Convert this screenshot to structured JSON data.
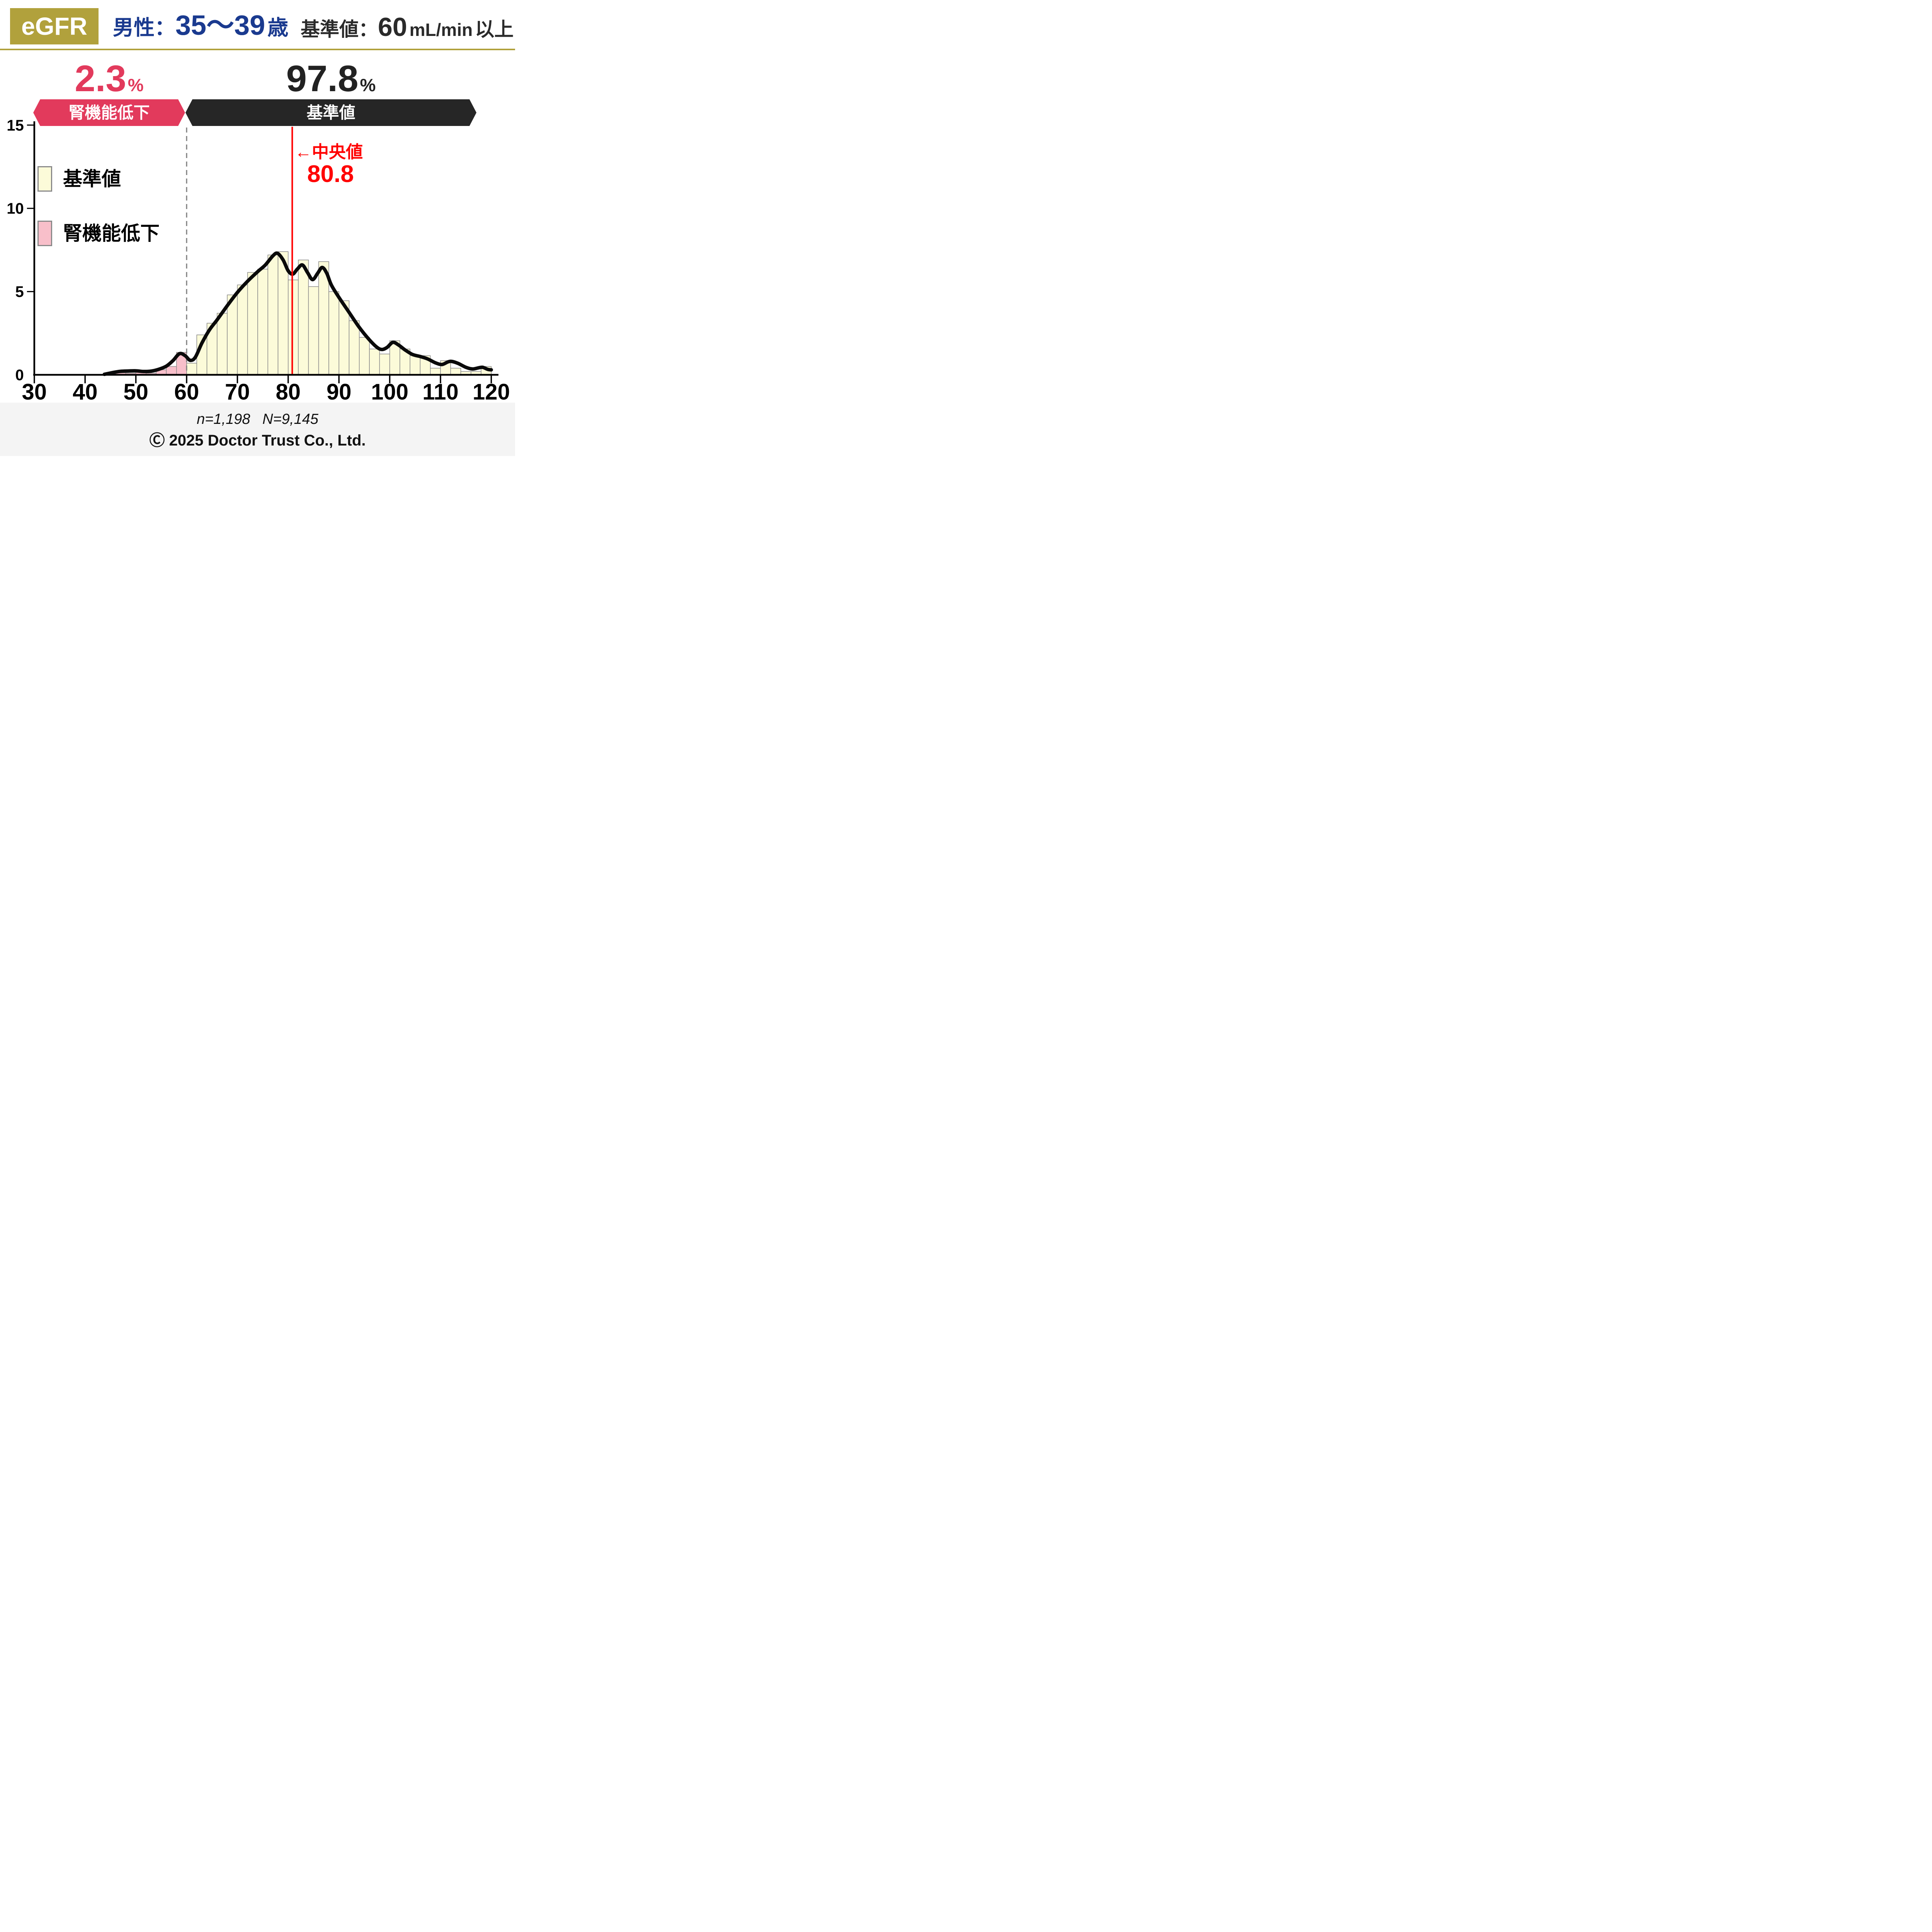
{
  "header": {
    "badge": "eGFR",
    "group_label": "男性：",
    "group_value": "35～39",
    "group_suffix": "歳",
    "ref_label": "基準値：",
    "ref_value": "60",
    "ref_unit": "mL/min",
    "ref_suffix": "以上",
    "accent_color": "#B1A13C",
    "group_color": "#1A3A8F"
  },
  "banners": {
    "low": {
      "pct": "2.3",
      "pct_unit": "%",
      "label": "腎機能低下",
      "color": "#E23A5C"
    },
    "normal": {
      "pct": "97.8",
      "pct_unit": "%",
      "label": "基準値",
      "color": "#262626"
    }
  },
  "legend": [
    {
      "label": "基準値",
      "color": "#FCFBD9"
    },
    {
      "label": "腎機能低下",
      "color": "#F8BFCA"
    }
  ],
  "median": {
    "arrow_label": "←中央値",
    "value": "80.8",
    "color": "#FF0000"
  },
  "footer": {
    "stats": "n=1,198   N=9,145",
    "copyright": "Ⓒ 2025 Doctor Trust Co., Ltd."
  },
  "chart_data": {
    "type": "bar",
    "subtype": "histogram_with_density_curve",
    "xlim": [
      30,
      120
    ],
    "ylim": [
      0,
      15
    ],
    "x_ticks": [
      30,
      40,
      50,
      60,
      70,
      80,
      90,
      100,
      110,
      120
    ],
    "y_ticks": [
      0,
      5,
      10,
      15
    ],
    "bin_width": 2,
    "threshold_x": 60,
    "median_x": 80.8,
    "grid": false,
    "legend_position": "upper-left-inside",
    "series": [
      {
        "name": "腎機能低下",
        "color": "#F8BFCA",
        "bins": [
          [
            44,
            0.07
          ],
          [
            46,
            0.12
          ],
          [
            48,
            0.1
          ],
          [
            50,
            0.2
          ],
          [
            52,
            0.1
          ],
          [
            54,
            0.3
          ],
          [
            56,
            0.5
          ],
          [
            58,
            1.35
          ]
        ]
      },
      {
        "name": "基準値",
        "color": "#FCFBD9",
        "bins": [
          [
            60,
            0.7
          ],
          [
            62,
            2.4
          ],
          [
            64,
            3.1
          ],
          [
            66,
            3.7
          ],
          [
            68,
            4.8
          ],
          [
            70,
            5.4
          ],
          [
            72,
            6.15
          ],
          [
            74,
            6.35
          ],
          [
            76,
            7.2
          ],
          [
            78,
            7.4
          ],
          [
            80,
            5.7
          ],
          [
            82,
            6.9
          ],
          [
            84,
            5.3
          ],
          [
            86,
            6.8
          ],
          [
            88,
            5.0
          ],
          [
            90,
            4.45
          ],
          [
            92,
            3.25
          ],
          [
            94,
            2.25
          ],
          [
            96,
            1.55
          ],
          [
            98,
            1.25
          ],
          [
            100,
            2.05
          ],
          [
            102,
            1.55
          ],
          [
            104,
            1.15
          ],
          [
            106,
            1.15
          ],
          [
            108,
            0.4
          ],
          [
            110,
            0.85
          ],
          [
            112,
            0.4
          ],
          [
            114,
            0.2
          ],
          [
            116,
            0.2
          ],
          [
            118,
            0.5
          ]
        ]
      }
    ],
    "density_curve": [
      [
        43.8,
        0.03
      ],
      [
        45.5,
        0.14
      ],
      [
        47,
        0.21
      ],
      [
        48.5,
        0.23
      ],
      [
        50,
        0.24
      ],
      [
        51.5,
        0.2
      ],
      [
        53,
        0.22
      ],
      [
        54.5,
        0.33
      ],
      [
        56,
        0.52
      ],
      [
        57.3,
        0.85
      ],
      [
        58.6,
        1.27
      ],
      [
        59.7,
        1.15
      ],
      [
        60.7,
        0.87
      ],
      [
        61.7,
        1.05
      ],
      [
        63,
        1.9
      ],
      [
        64.5,
        2.7
      ],
      [
        66,
        3.3
      ],
      [
        68,
        4.15
      ],
      [
        70,
        4.95
      ],
      [
        72,
        5.62
      ],
      [
        74,
        6.2
      ],
      [
        75.5,
        6.6
      ],
      [
        77,
        7.15
      ],
      [
        77.9,
        7.3
      ],
      [
        79,
        6.9
      ],
      [
        80,
        6.25
      ],
      [
        80.9,
        6.05
      ],
      [
        81.8,
        6.35
      ],
      [
        82.8,
        6.6
      ],
      [
        83.8,
        6.15
      ],
      [
        84.8,
        5.72
      ],
      [
        85.8,
        6.1
      ],
      [
        86.7,
        6.45
      ],
      [
        87.6,
        6.1
      ],
      [
        88.5,
        5.4
      ],
      [
        90,
        4.65
      ],
      [
        92,
        3.75
      ],
      [
        94,
        2.85
      ],
      [
        96,
        2.1
      ],
      [
        97.5,
        1.65
      ],
      [
        98.5,
        1.52
      ],
      [
        99.5,
        1.65
      ],
      [
        100.6,
        1.95
      ],
      [
        101.7,
        1.8
      ],
      [
        103,
        1.5
      ],
      [
        104.5,
        1.22
      ],
      [
        106,
        1.1
      ],
      [
        107.5,
        0.95
      ],
      [
        109,
        0.72
      ],
      [
        110.3,
        0.62
      ],
      [
        111.5,
        0.78
      ],
      [
        112.3,
        0.8
      ],
      [
        113.5,
        0.68
      ],
      [
        115,
        0.45
      ],
      [
        116.3,
        0.35
      ],
      [
        117.5,
        0.42
      ],
      [
        118.3,
        0.45
      ],
      [
        119.3,
        0.33
      ],
      [
        120,
        0.3
      ]
    ],
    "colors": {
      "curve": "#0A0A0A",
      "bar_border": "#8A8A8A",
      "threshold_line": "#7F7F7F",
      "median_line": "#FF0000",
      "axis": "#000000"
    }
  }
}
